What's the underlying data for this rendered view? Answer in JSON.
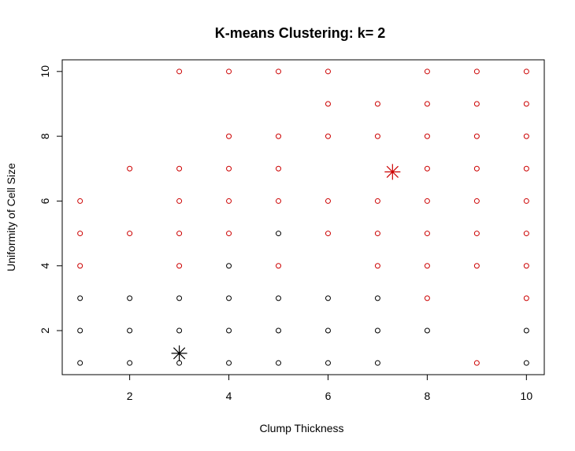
{
  "chart_data": {
    "type": "scatter",
    "title": "K-means Clustering: k= 2",
    "xlabel": "Clump Thickness",
    "ylabel": "Uniformity of Cell Size",
    "xlim": [
      0.64,
      10.36
    ],
    "ylim": [
      0.64,
      10.36
    ],
    "xticks": [
      "2",
      "4",
      "6",
      "8",
      "10"
    ],
    "yticks": [
      "2",
      "4",
      "6",
      "8",
      "10"
    ],
    "grid": false,
    "colors": {
      "cluster_1": "#000000",
      "cluster_2": "#cc0000"
    },
    "series": [
      {
        "cluster": 1,
        "color": "#000000",
        "marker": "open-circle",
        "points": [
          [
            1,
            1
          ],
          [
            1,
            2
          ],
          [
            1,
            3
          ],
          [
            2,
            1
          ],
          [
            2,
            2
          ],
          [
            2,
            3
          ],
          [
            3,
            1
          ],
          [
            3,
            2
          ],
          [
            3,
            3
          ],
          [
            4,
            1
          ],
          [
            4,
            2
          ],
          [
            4,
            3
          ],
          [
            4,
            4
          ],
          [
            5,
            1
          ],
          [
            5,
            2
          ],
          [
            5,
            3
          ],
          [
            5,
            5
          ],
          [
            6,
            1
          ],
          [
            6,
            2
          ],
          [
            6,
            3
          ],
          [
            7,
            1
          ],
          [
            7,
            2
          ],
          [
            7,
            3
          ],
          [
            8,
            2
          ],
          [
            10,
            1
          ],
          [
            10,
            2
          ]
        ]
      },
      {
        "cluster": 2,
        "color": "#cc0000",
        "marker": "open-circle",
        "points": [
          [
            1,
            4
          ],
          [
            1,
            5
          ],
          [
            1,
            6
          ],
          [
            2,
            5
          ],
          [
            2,
            7
          ],
          [
            3,
            4
          ],
          [
            3,
            5
          ],
          [
            3,
            6
          ],
          [
            3,
            7
          ],
          [
            3,
            10
          ],
          [
            4,
            5
          ],
          [
            4,
            6
          ],
          [
            4,
            7
          ],
          [
            4,
            8
          ],
          [
            4,
            10
          ],
          [
            5,
            4
          ],
          [
            5,
            6
          ],
          [
            5,
            7
          ],
          [
            5,
            8
          ],
          [
            5,
            10
          ],
          [
            6,
            5
          ],
          [
            6,
            6
          ],
          [
            6,
            8
          ],
          [
            6,
            9
          ],
          [
            6,
            10
          ],
          [
            7,
            4
          ],
          [
            7,
            5
          ],
          [
            7,
            6
          ],
          [
            7,
            8
          ],
          [
            7,
            9
          ],
          [
            8,
            3
          ],
          [
            8,
            4
          ],
          [
            8,
            5
          ],
          [
            8,
            6
          ],
          [
            8,
            7
          ],
          [
            8,
            8
          ],
          [
            8,
            9
          ],
          [
            8,
            10
          ],
          [
            9,
            1
          ],
          [
            9,
            4
          ],
          [
            9,
            5
          ],
          [
            9,
            6
          ],
          [
            9,
            7
          ],
          [
            9,
            8
          ],
          [
            9,
            9
          ],
          [
            9,
            10
          ],
          [
            10,
            3
          ],
          [
            10,
            4
          ],
          [
            10,
            5
          ],
          [
            10,
            6
          ],
          [
            10,
            7
          ],
          [
            10,
            8
          ],
          [
            10,
            9
          ],
          [
            10,
            10
          ]
        ]
      }
    ],
    "centers": [
      {
        "cluster": 1,
        "x": 3.0,
        "y": 1.3,
        "color": "#000000",
        "marker": "asterisk"
      },
      {
        "cluster": 2,
        "x": 7.3,
        "y": 6.9,
        "color": "#cc0000",
        "marker": "asterisk"
      }
    ]
  }
}
